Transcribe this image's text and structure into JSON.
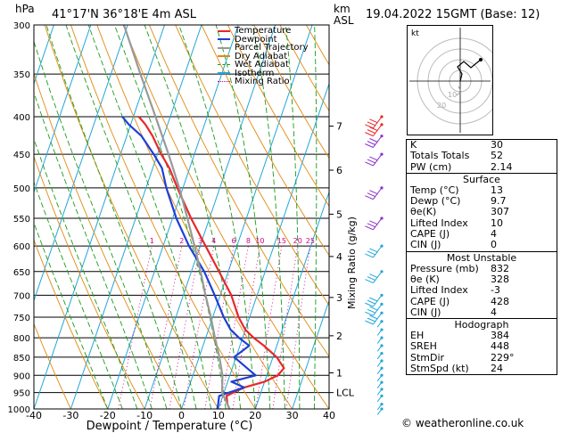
{
  "header": {
    "p_unit": "hPa",
    "location": "41°17'N  36°18'E  4m  ASL",
    "km_label": "km",
    "asl_label": "ASL",
    "datetime": "19.04.2022  15GMT  (Base: 12)"
  },
  "legend": [
    {
      "label": "Temperature",
      "color": "#e8272a"
    },
    {
      "label": "Dewpoint",
      "color": "#1e3fd8"
    },
    {
      "label": "Parcel Trajectory",
      "color": "#999999"
    },
    {
      "label": "Dry Adiabat",
      "color": "#e08a10"
    },
    {
      "label": "Wet Adiabat",
      "color": "#1a9c1a"
    },
    {
      "label": "Isotherm",
      "color": "#22a6d9"
    },
    {
      "label": "Mixing Ratio",
      "color": "#d4008a"
    }
  ],
  "chart_data": {
    "type": "line",
    "xlabel": "Dewpoint / Temperature (°C)",
    "x_ticks": [
      -40,
      -30,
      -20,
      -10,
      0,
      10,
      20,
      30,
      40
    ],
    "xlim": [
      -40,
      40
    ],
    "ylim": [
      1000,
      300
    ],
    "y_scale": "log",
    "p_ticks": [
      300,
      350,
      400,
      450,
      500,
      550,
      600,
      650,
      700,
      750,
      800,
      850,
      900,
      950,
      1000
    ],
    "km_ticks": [
      {
        "label": "7",
        "p": 412
      },
      {
        "label": "6",
        "p": 473
      },
      {
        "label": "5",
        "p": 543
      },
      {
        "label": "4",
        "p": 620
      },
      {
        "label": "3",
        "p": 705
      },
      {
        "label": "2",
        "p": 795
      },
      {
        "label": "1",
        "p": 893
      },
      {
        "label": "LCL",
        "p": 950
      }
    ],
    "mixing_ratio_label": "Mixing Ratio (g/kg)",
    "mixing_ratio_values": [
      "1",
      "2",
      "3",
      "4",
      "6",
      "8",
      "10",
      "15",
      "20",
      "25"
    ],
    "series": [
      {
        "name": "Temperature",
        "color": "#e8272a",
        "p": [
          1000,
          985,
          960,
          935,
          918,
          900,
          880,
          850,
          820,
          800,
          780,
          750,
          700,
          650,
          600,
          550,
          500,
          470,
          450,
          425,
          410,
          400
        ],
        "t": [
          13,
          12,
          11,
          15,
          20,
          23,
          24,
          21,
          16.5,
          13,
          10,
          7,
          3,
          -2.5,
          -8.5,
          -15,
          -21.5,
          -25.5,
          -29,
          -33,
          -36,
          -38.5
        ]
      },
      {
        "name": "Dewpoint",
        "color": "#1e3fd8",
        "p": [
          1000,
          985,
          960,
          935,
          918,
          900,
          880,
          850,
          820,
          800,
          780,
          750,
          700,
          650,
          600,
          550,
          500,
          470,
          450,
          425,
          410,
          400
        ],
        "t": [
          9.7,
          9.5,
          9,
          15,
          11,
          17,
          14,
          9.5,
          12.5,
          9,
          6,
          3,
          -1.5,
          -6.5,
          -13,
          -19,
          -24.5,
          -27.5,
          -31,
          -36,
          -40.5,
          -43
        ]
      },
      {
        "name": "Parcel Trajectory",
        "color": "#999999",
        "p": [
          1000,
          950,
          900,
          850,
          800,
          750,
          700,
          650,
          600,
          550,
          500,
          450,
          400,
          350,
          300
        ],
        "t": [
          13,
          9.5,
          8,
          5.5,
          2.5,
          -0.5,
          -4,
          -7.5,
          -11.5,
          -16,
          -21,
          -27,
          -34,
          -42,
          -51
        ]
      }
    ],
    "wind_barbs": {
      "color_high": "#e8272a",
      "color_mid": "#8b2fc9",
      "color_low": "#22a6d9"
    }
  },
  "indices": {
    "rows_top": [
      {
        "k": "K",
        "v": "30"
      },
      {
        "k": "Totals Totals",
        "v": "52"
      },
      {
        "k": "PW (cm)",
        "v": "2.14"
      }
    ],
    "surface_title": "Surface",
    "surface": [
      {
        "k": "Temp (°C)",
        "v": "13"
      },
      {
        "k": "Dewp (°C)",
        "v": "9.7"
      },
      {
        "k": "θe(K)",
        "v": "307"
      },
      {
        "k": "Lifted Index",
        "v": "10"
      },
      {
        "k": "CAPE (J)",
        "v": "4"
      },
      {
        "k": "CIN (J)",
        "v": "0"
      }
    ],
    "mu_title": "Most Unstable",
    "mu": [
      {
        "k": "Pressure (mb)",
        "v": "832"
      },
      {
        "k": "θe (K)",
        "v": "328"
      },
      {
        "k": "Lifted Index",
        "v": "-3"
      },
      {
        "k": "CAPE (J)",
        "v": "428"
      },
      {
        "k": "CIN (J)",
        "v": "4"
      }
    ],
    "hodo_title": "Hodograph",
    "hodo": [
      {
        "k": "EH",
        "v": "384"
      },
      {
        "k": "SREH",
        "v": "448"
      },
      {
        "k": "StmDir",
        "v": "229°"
      },
      {
        "k": "StmSpd (kt)",
        "v": "24"
      }
    ]
  },
  "hodograph": {
    "unit_label": "kt",
    "ring_labels": [
      "10",
      "20"
    ]
  },
  "footer": "© weatheronline.co.uk"
}
